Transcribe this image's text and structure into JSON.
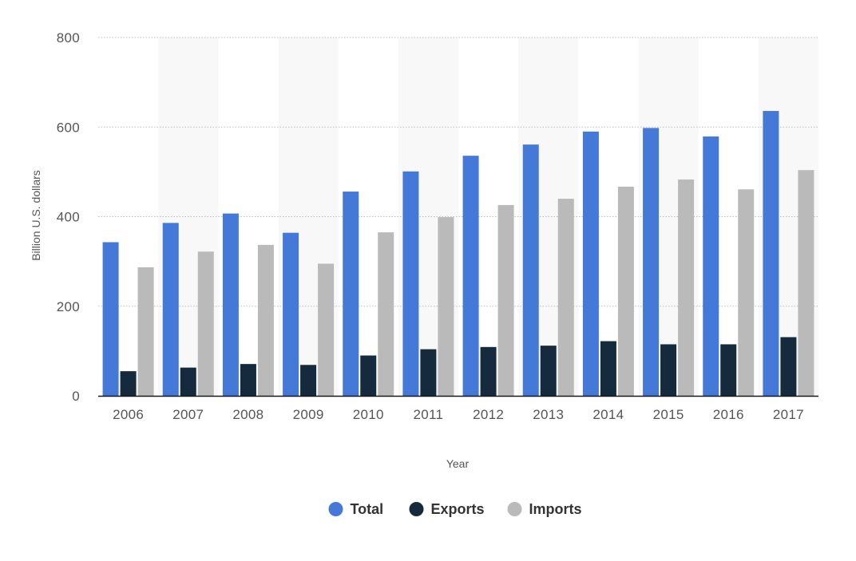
{
  "chart_data": {
    "type": "bar",
    "title": "",
    "xlabel": "Year",
    "ylabel": "Billion U.S. dollars",
    "categories": [
      "2006",
      "2007",
      "2008",
      "2009",
      "2010",
      "2011",
      "2012",
      "2013",
      "2014",
      "2015",
      "2016",
      "2017"
    ],
    "series": [
      {
        "name": "Total",
        "color": "#4479d8",
        "values": [
          343,
          386,
          407,
          364,
          456,
          501,
          536,
          561,
          590,
          598,
          579,
          636
        ]
      },
      {
        "name": "Exports",
        "color": "#162a3e",
        "values": [
          55,
          63,
          71,
          69,
          90,
          104,
          109,
          112,
          122,
          115,
          115,
          131
        ]
      },
      {
        "name": "Imports",
        "color": "#bababa",
        "values": [
          287,
          322,
          337,
          295,
          365,
          399,
          426,
          440,
          467,
          483,
          461,
          504
        ]
      }
    ],
    "ylim": [
      0,
      800
    ],
    "yticks": [
      0,
      200,
      400,
      600,
      800
    ],
    "grid": true,
    "alternating_bands": true,
    "legend_position": "bottom-center"
  }
}
